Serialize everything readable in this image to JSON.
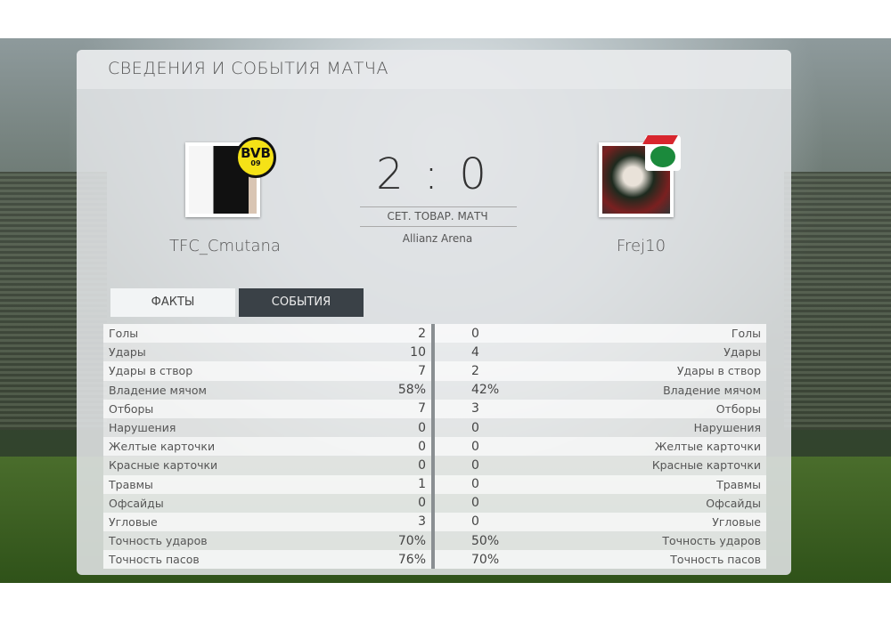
{
  "title": "СВЕДЕНИЯ И СОБЫТИЯ МАТЧА",
  "home": {
    "name": "TFC_Cmutana",
    "club_badge": "BVB",
    "club_badge_sub": "09",
    "score": "2"
  },
  "away": {
    "name": "Frej10",
    "club_badge": "lokomotiv-icon",
    "score": "0"
  },
  "score": "2 : 0",
  "match_type": "СЕТ. ТОВАР. МАТЧ",
  "venue": "Allianz Arena",
  "tabs": [
    {
      "label": "ФАКТЫ",
      "active": false
    },
    {
      "label": "СОБЫТИЯ",
      "active": true
    }
  ],
  "stats": [
    {
      "label": "Голы",
      "home": "2",
      "away": "0"
    },
    {
      "label": "Удары",
      "home": "10",
      "away": "4"
    },
    {
      "label": "Удары в створ",
      "home": "7",
      "away": "2"
    },
    {
      "label": "Владение мячом",
      "home": "58%",
      "away": "42%"
    },
    {
      "label": "Отборы",
      "home": "7",
      "away": "3"
    },
    {
      "label": "Нарушения",
      "home": "0",
      "away": "0"
    },
    {
      "label": "Желтые карточки",
      "home": "0",
      "away": "0"
    },
    {
      "label": "Красные карточки",
      "home": "0",
      "away": "0"
    },
    {
      "label": "Травмы",
      "home": "1",
      "away": "0"
    },
    {
      "label": "Офсайды",
      "home": "0",
      "away": "0"
    },
    {
      "label": "Угловые",
      "home": "3",
      "away": "0"
    },
    {
      "label": "Точность ударов",
      "home": "70%",
      "away": "50%"
    },
    {
      "label": "Точность пасов",
      "home": "76%",
      "away": "70%"
    }
  ]
}
